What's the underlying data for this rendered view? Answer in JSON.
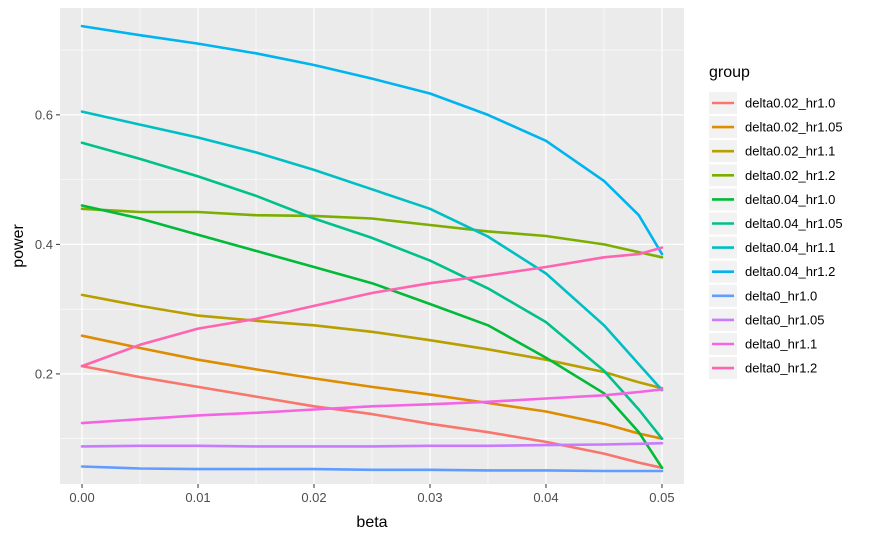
{
  "chart_data": {
    "type": "line",
    "xlabel": "beta",
    "ylabel": "power",
    "xlim": [
      -0.0019,
      0.0519
    ],
    "ylim": [
      0.03,
      0.765
    ],
    "x_ticks": [
      0.0,
      0.01,
      0.02,
      0.03,
      0.04,
      0.05
    ],
    "x_tick_labels": [
      "0.00",
      "0.01",
      "0.02",
      "0.03",
      "0.04",
      "0.05"
    ],
    "y_ticks": [
      0.2,
      0.4,
      0.6
    ],
    "y_tick_labels": [
      "0.2",
      "0.4",
      "0.6"
    ],
    "grid": true,
    "legend_title": "group",
    "legend_position": "right",
    "x": [
      0,
      0.005,
      0.01,
      0.015,
      0.02,
      0.025,
      0.03,
      0.035,
      0.04,
      0.045,
      0.048,
      0.05
    ],
    "series": [
      {
        "name": "delta0.02_hr1.0",
        "color": "#F8766D",
        "values": [
          0.212,
          0.195,
          0.18,
          0.165,
          0.15,
          0.138,
          0.123,
          0.11,
          0.095,
          0.077,
          0.063,
          0.055
        ]
      },
      {
        "name": "delta0.02_hr1.05",
        "color": "#DE8C00",
        "values": [
          0.259,
          0.24,
          0.222,
          0.207,
          0.193,
          0.18,
          0.168,
          0.155,
          0.142,
          0.123,
          0.108,
          0.1
        ]
      },
      {
        "name": "delta0.02_hr1.1",
        "color": "#B79F00",
        "values": [
          0.322,
          0.305,
          0.29,
          0.282,
          0.275,
          0.265,
          0.252,
          0.238,
          0.222,
          0.203,
          0.187,
          0.178
        ]
      },
      {
        "name": "delta0.02_hr1.2",
        "color": "#7CAE00",
        "values": [
          0.455,
          0.45,
          0.45,
          0.445,
          0.444,
          0.44,
          0.43,
          0.42,
          0.413,
          0.4,
          0.388,
          0.38
        ]
      },
      {
        "name": "delta0.04_hr1.0",
        "color": "#00BA38",
        "values": [
          0.46,
          0.44,
          0.415,
          0.39,
          0.365,
          0.34,
          0.308,
          0.275,
          0.225,
          0.17,
          0.11,
          0.055
        ]
      },
      {
        "name": "delta0.04_hr1.05",
        "color": "#00C08B",
        "values": [
          0.557,
          0.532,
          0.505,
          0.475,
          0.44,
          0.41,
          0.375,
          0.332,
          0.28,
          0.205,
          0.145,
          0.1
        ]
      },
      {
        "name": "delta0.04_hr1.1",
        "color": "#00BFC4",
        "values": [
          0.605,
          0.585,
          0.565,
          0.542,
          0.515,
          0.485,
          0.455,
          0.412,
          0.355,
          0.275,
          0.215,
          0.175
        ]
      },
      {
        "name": "delta0.04_hr1.2",
        "color": "#00B4F0",
        "values": [
          0.737,
          0.723,
          0.71,
          0.695,
          0.677,
          0.656,
          0.633,
          0.6,
          0.56,
          0.498,
          0.445,
          0.385
        ]
      },
      {
        "name": "delta0_hr1.0",
        "color": "#619CFF",
        "values": [
          0.057,
          0.054,
          0.053,
          0.053,
          0.053,
          0.052,
          0.052,
          0.051,
          0.051,
          0.05,
          0.05,
          0.05
        ]
      },
      {
        "name": "delta0_hr1.05",
        "color": "#C77CFF",
        "values": [
          0.088,
          0.089,
          0.089,
          0.088,
          0.088,
          0.088,
          0.089,
          0.089,
          0.09,
          0.091,
          0.092,
          0.093
        ]
      },
      {
        "name": "delta0_hr1.1",
        "color": "#F564E3",
        "values": [
          0.124,
          0.13,
          0.136,
          0.14,
          0.145,
          0.15,
          0.153,
          0.157,
          0.162,
          0.167,
          0.172,
          0.176
        ]
      },
      {
        "name": "delta0_hr1.2",
        "color": "#FF64B0",
        "values": [
          0.212,
          0.245,
          0.27,
          0.285,
          0.305,
          0.325,
          0.34,
          0.352,
          0.365,
          0.38,
          0.385,
          0.395
        ]
      }
    ]
  }
}
